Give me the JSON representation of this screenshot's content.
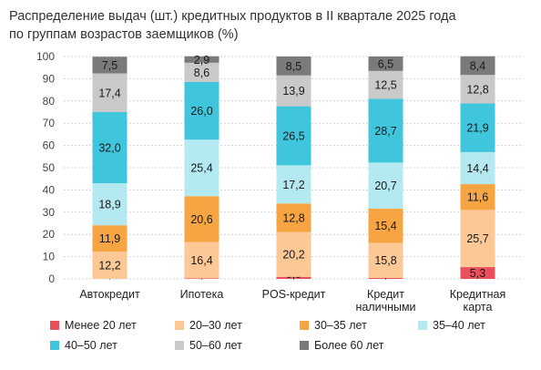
{
  "title_lines": [
    "Распределение выдач (шт.) кредитных продуктов в II квартале 2025 года",
    "по группам возрастов заемщиков (%)"
  ],
  "chart_data": {
    "type": "bar",
    "stacked": true,
    "title": "Распределение выдач (шт.) кредитных продуктов в II квартале 2025 года по группам возрастов заемщиков (%)",
    "ylim": [
      0,
      100
    ],
    "yticks": [
      0,
      10,
      20,
      30,
      40,
      50,
      60,
      70,
      80,
      90,
      100
    ],
    "grid": true,
    "legend_position": "bottom",
    "categories": [
      [
        "Автокредит"
      ],
      [
        "Ипотека"
      ],
      [
        "POS-кредит"
      ],
      [
        "Кредит",
        "наличными"
      ],
      [
        "Кредитная",
        "карта"
      ]
    ],
    "series": [
      {
        "name": "Менее 20 лет",
        "color": "#e8505b",
        "values": [
          0.0,
          0.2,
          0.9,
          0.4,
          5.3
        ]
      },
      {
        "name": "20–30 лет",
        "color": "#fbc896",
        "values": [
          12.2,
          16.4,
          20.2,
          15.8,
          25.7
        ]
      },
      {
        "name": "30–35 лет",
        "color": "#f7a443",
        "values": [
          11.9,
          20.6,
          12.8,
          15.4,
          11.6
        ]
      },
      {
        "name": "35–40 лет",
        "color": "#b5e9f2",
        "values": [
          18.9,
          25.4,
          17.2,
          20.7,
          14.4
        ]
      },
      {
        "name": "40–50 лет",
        "color": "#3fc5dc",
        "values": [
          32.0,
          26.0,
          26.5,
          28.7,
          21.9
        ]
      },
      {
        "name": "50–60 лет",
        "color": "#c9c9c9",
        "values": [
          17.4,
          8.6,
          13.9,
          12.5,
          12.8
        ]
      },
      {
        "name": "Более 60 лет",
        "color": "#7a7a7a",
        "values": [
          7.5,
          2.9,
          8.5,
          6.5,
          8.4
        ]
      }
    ]
  }
}
